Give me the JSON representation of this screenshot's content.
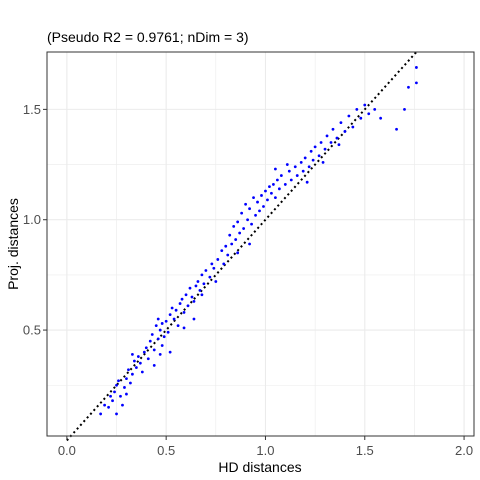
{
  "chart_data": {
    "type": "scatter",
    "title": "(Pseudo R2 = 0.9761; nDim = 3)",
    "xlabel": "HD distances",
    "ylabel": "Proj. distances",
    "xlim": [
      -0.1,
      2.05
    ],
    "ylim": [
      0.02,
      1.76
    ],
    "x_ticks": [
      0.0,
      0.5,
      1.0,
      1.5,
      2.0
    ],
    "x_tick_labels": [
      "0.0",
      "0.5",
      "1.0",
      "1.5",
      "2.0"
    ],
    "y_ticks": [
      0.5,
      1.0,
      1.5
    ],
    "y_tick_labels": [
      "0.5",
      "1.0",
      "1.5"
    ],
    "grid": true,
    "colors": {
      "points": "#0000ff",
      "reference_line": "#000000",
      "grid": "#ebebeb",
      "panel_border": "#333333"
    },
    "reference_line": {
      "style": "dotted",
      "x": [
        0.0,
        1.76
      ],
      "y": [
        0.0,
        1.76
      ]
    },
    "points": [
      [
        0.17,
        0.12
      ],
      [
        0.19,
        0.16
      ],
      [
        0.21,
        0.15
      ],
      [
        0.22,
        0.2
      ],
      [
        0.23,
        0.18
      ],
      [
        0.24,
        0.22
      ],
      [
        0.25,
        0.25
      ],
      [
        0.25,
        0.12
      ],
      [
        0.26,
        0.27
      ],
      [
        0.27,
        0.2
      ],
      [
        0.28,
        0.16
      ],
      [
        0.29,
        0.24
      ],
      [
        0.3,
        0.28
      ],
      [
        0.3,
        0.21
      ],
      [
        0.31,
        0.32
      ],
      [
        0.32,
        0.26
      ],
      [
        0.33,
        0.3
      ],
      [
        0.34,
        0.36
      ],
      [
        0.35,
        0.33
      ],
      [
        0.36,
        0.38
      ],
      [
        0.37,
        0.35
      ],
      [
        0.38,
        0.31
      ],
      [
        0.39,
        0.4
      ],
      [
        0.4,
        0.42
      ],
      [
        0.41,
        0.37
      ],
      [
        0.42,
        0.45
      ],
      [
        0.43,
        0.48
      ],
      [
        0.44,
        0.41
      ],
      [
        0.45,
        0.52
      ],
      [
        0.46,
        0.55
      ],
      [
        0.46,
        0.46
      ],
      [
        0.47,
        0.5
      ],
      [
        0.48,
        0.53
      ],
      [
        0.48,
        0.43
      ],
      [
        0.49,
        0.47
      ],
      [
        0.5,
        0.54
      ],
      [
        0.51,
        0.49
      ],
      [
        0.52,
        0.57
      ],
      [
        0.53,
        0.6
      ],
      [
        0.54,
        0.55
      ],
      [
        0.55,
        0.59
      ],
      [
        0.56,
        0.52
      ],
      [
        0.57,
        0.62
      ],
      [
        0.58,
        0.64
      ],
      [
        0.59,
        0.58
      ],
      [
        0.6,
        0.66
      ],
      [
        0.61,
        0.61
      ],
      [
        0.62,
        0.69
      ],
      [
        0.63,
        0.65
      ],
      [
        0.64,
        0.63
      ],
      [
        0.65,
        0.7
      ],
      [
        0.66,
        0.72
      ],
      [
        0.67,
        0.68
      ],
      [
        0.68,
        0.75
      ],
      [
        0.69,
        0.71
      ],
      [
        0.7,
        0.77
      ],
      [
        0.72,
        0.74
      ],
      [
        0.73,
        0.8
      ],
      [
        0.74,
        0.78
      ],
      [
        0.76,
        0.82
      ],
      [
        0.78,
        0.86
      ],
      [
        0.79,
        0.8
      ],
      [
        0.8,
        0.88
      ],
      [
        0.81,
        0.84
      ],
      [
        0.82,
        0.93
      ],
      [
        0.83,
        0.89
      ],
      [
        0.84,
        0.97
      ],
      [
        0.85,
        0.91
      ],
      [
        0.86,
        0.99
      ],
      [
        0.87,
        0.94
      ],
      [
        0.88,
        1.03
      ],
      [
        0.89,
        0.96
      ],
      [
        0.9,
        1.07
      ],
      [
        0.91,
        1.0
      ],
      [
        0.92,
        1.05
      ],
      [
        0.93,
        0.98
      ],
      [
        0.94,
        1.1
      ],
      [
        0.95,
        1.02
      ],
      [
        0.96,
        1.08
      ],
      [
        0.97,
        1.04
      ],
      [
        0.98,
        1.11
      ],
      [
        0.99,
        1.06
      ],
      [
        1.0,
        1.13
      ],
      [
        1.01,
        1.09
      ],
      [
        1.02,
        1.15
      ],
      [
        1.03,
        1.12
      ],
      [
        1.04,
        1.16
      ],
      [
        1.05,
        1.1
      ],
      [
        1.06,
        1.18
      ],
      [
        1.07,
        1.14
      ],
      [
        1.08,
        1.2
      ],
      [
        1.1,
        1.16
      ],
      [
        1.12,
        1.22
      ],
      [
        1.13,
        1.18
      ],
      [
        1.15,
        1.24
      ],
      [
        1.16,
        1.2
      ],
      [
        1.18,
        1.26
      ],
      [
        1.19,
        1.22
      ],
      [
        1.2,
        1.28
      ],
      [
        1.22,
        1.24
      ],
      [
        1.23,
        1.31
      ],
      [
        1.24,
        1.27
      ],
      [
        1.25,
        1.33
      ],
      [
        1.27,
        1.29
      ],
      [
        1.28,
        1.35
      ],
      [
        1.3,
        1.32
      ],
      [
        1.31,
        1.38
      ],
      [
        1.33,
        1.35
      ],
      [
        1.34,
        1.41
      ],
      [
        1.36,
        1.37
      ],
      [
        1.38,
        1.44
      ],
      [
        1.4,
        1.4
      ],
      [
        1.42,
        1.47
      ],
      [
        1.44,
        1.42
      ],
      [
        1.46,
        1.5
      ],
      [
        1.48,
        1.46
      ],
      [
        1.5,
        1.52
      ],
      [
        1.52,
        1.48
      ],
      [
        1.55,
        1.5
      ],
      [
        1.58,
        1.46
      ],
      [
        1.66,
        1.41
      ],
      [
        1.7,
        1.5
      ],
      [
        1.72,
        1.6
      ],
      [
        1.76,
        1.62
      ],
      [
        1.76,
        1.69
      ],
      [
        0.33,
        0.39
      ],
      [
        0.44,
        0.34
      ],
      [
        0.52,
        0.4
      ],
      [
        0.59,
        0.51
      ],
      [
        0.68,
        0.66
      ],
      [
        0.75,
        0.72
      ],
      [
        0.86,
        0.85
      ],
      [
        0.92,
        0.89
      ],
      [
        1.05,
        1.23
      ],
      [
        1.11,
        1.25
      ],
      [
        1.21,
        1.17
      ],
      [
        1.29,
        1.26
      ],
      [
        1.37,
        1.34
      ],
      [
        0.47,
        0.39
      ],
      [
        0.64,
        0.55
      ]
    ]
  }
}
